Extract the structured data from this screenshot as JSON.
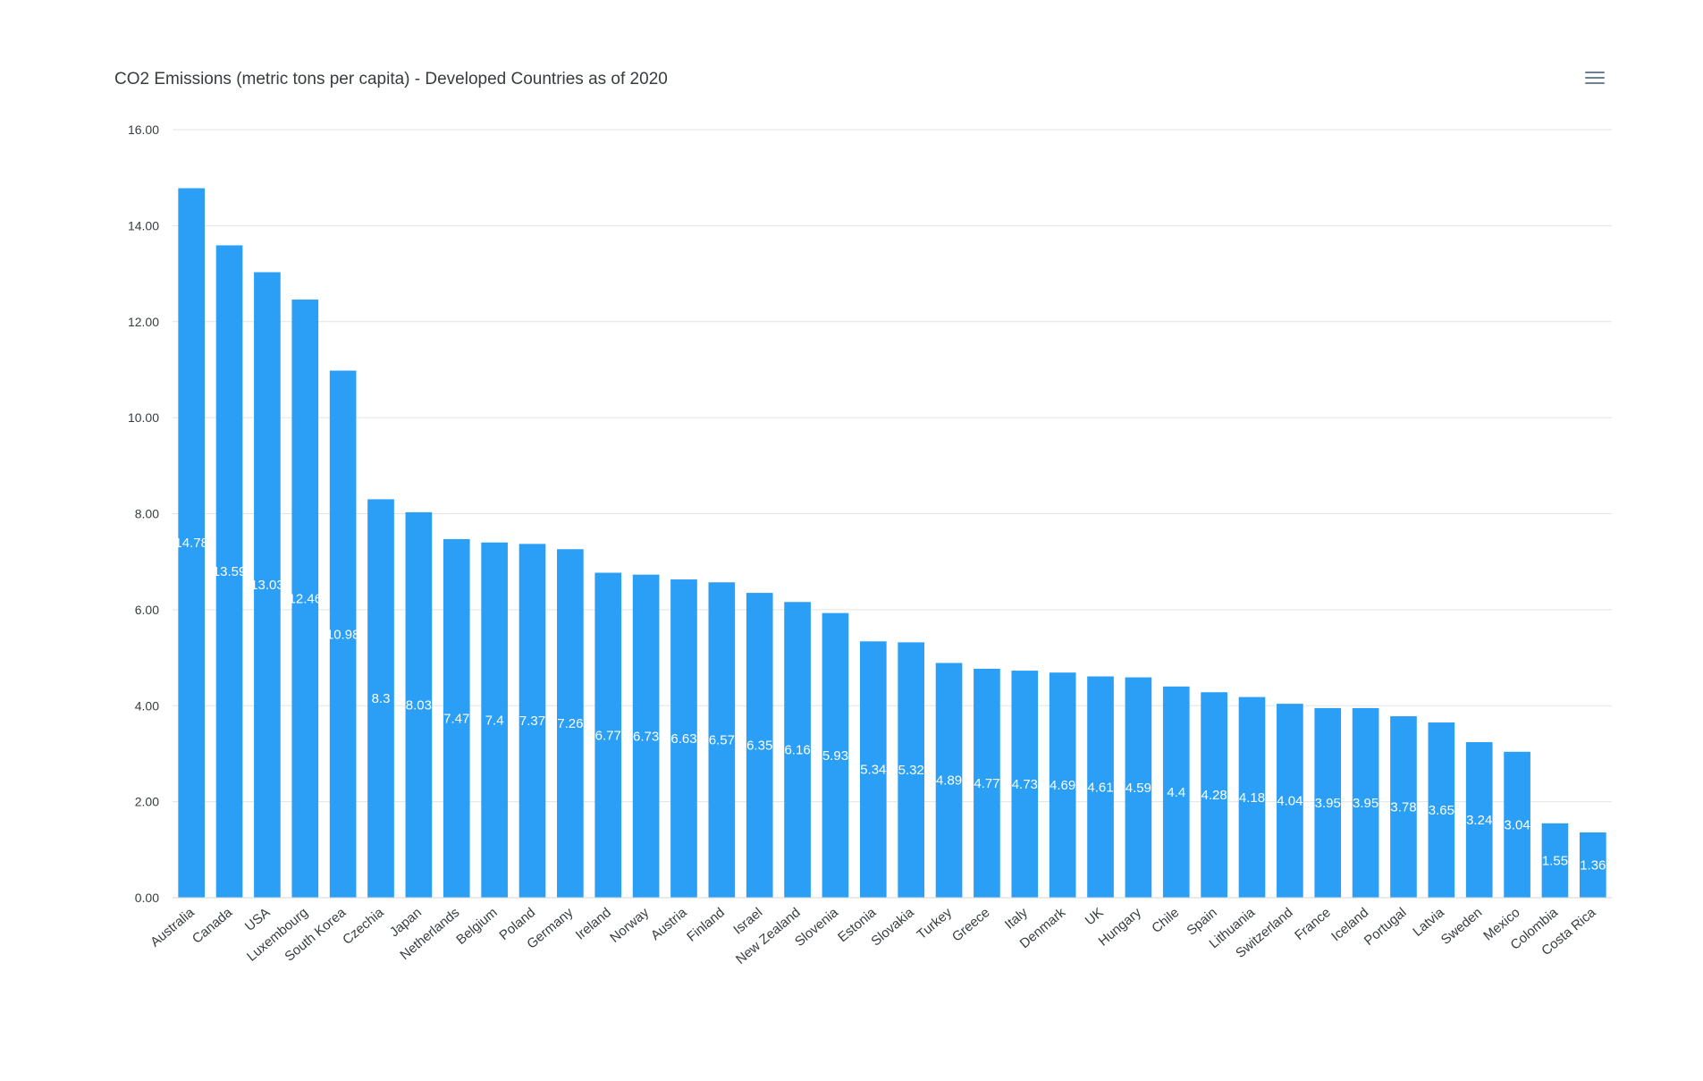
{
  "chart_data": {
    "type": "bar",
    "title": "CO2 Emissions (metric tons per capita) - Developed Countries as of 2020",
    "xlabel": "",
    "ylabel": "",
    "ylim": [
      0,
      16
    ],
    "yticks": [
      "0.00",
      "2.00",
      "4.00",
      "6.00",
      "8.00",
      "10.00",
      "12.00",
      "14.00",
      "16.00"
    ],
    "grid": true,
    "bar_color": "#2b9ef6",
    "categories": [
      "Australia",
      "Canada",
      "USA",
      "Luxembourg",
      "South Korea",
      "Czechia",
      "Japan",
      "Netherlands",
      "Belgium",
      "Poland",
      "Germany",
      "Ireland",
      "Norway",
      "Austria",
      "Finland",
      "Israel",
      "New Zealand",
      "Slovenia",
      "Estonia",
      "Slovakia",
      "Turkey",
      "Greece",
      "Italy",
      "Denmark",
      "UK",
      "Hungary",
      "Chile",
      "Spain",
      "Lithuania",
      "Switzerland",
      "France",
      "Iceland",
      "Portugal",
      "Latvia",
      "Sweden",
      "Mexico",
      "Colombia",
      "Costa Rica"
    ],
    "values": [
      14.78,
      13.59,
      13.03,
      12.46,
      10.98,
      8.3,
      8.03,
      7.47,
      7.4,
      7.37,
      7.26,
      6.77,
      6.73,
      6.63,
      6.57,
      6.35,
      6.16,
      5.93,
      5.34,
      5.32,
      4.89,
      4.77,
      4.73,
      4.69,
      4.61,
      4.59,
      4.4,
      4.28,
      4.18,
      4.04,
      3.95,
      3.95,
      3.78,
      3.65,
      3.24,
      3.04,
      1.55,
      1.36
    ],
    "data_labels": [
      "14.78",
      "13.59",
      "13.03",
      "12.46",
      "10.98",
      "8.3",
      "8.03",
      "7.47",
      "7.4",
      "7.37",
      "7.26",
      "6.77",
      "6.73",
      "6.63",
      "6.57",
      "6.35",
      "6.16",
      "5.93",
      "5.34",
      "5.32",
      "4.89",
      "4.77",
      "4.73",
      "4.69",
      "4.61",
      "4.59",
      "4.4",
      "4.28",
      "4.18",
      "4.04",
      "3.95",
      "3.95",
      "3.78",
      "3.65",
      "3.24",
      "3.04",
      "1.55",
      "1.36"
    ]
  },
  "toolbar": {
    "menu_icon": "hamburger-menu-icon"
  }
}
